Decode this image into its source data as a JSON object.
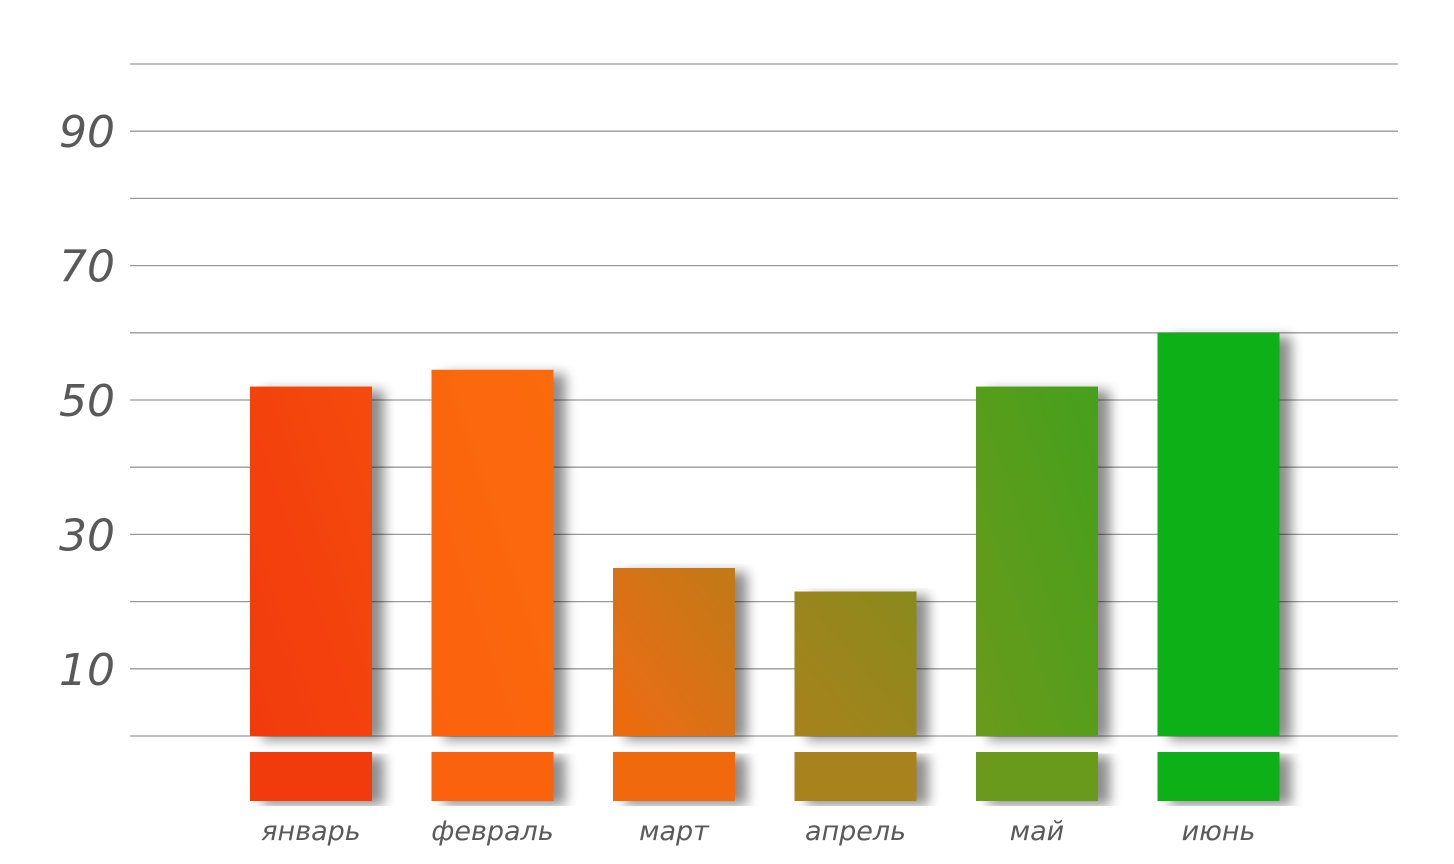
{
  "chart_data": {
    "type": "bar",
    "categories": [
      "январь",
      "февраль",
      "март",
      "апрель",
      "май",
      "июнь"
    ],
    "values": [
      52,
      54.5,
      25,
      21.5,
      52,
      60
    ],
    "title": "",
    "xlabel": "",
    "ylabel": "",
    "ylim": [
      0,
      100
    ],
    "y_ticks": [
      10,
      30,
      50,
      70,
      90
    ],
    "grid_step": 10,
    "grid": true,
    "legend": "none",
    "colors": {
      "bars_top": [
        "#f54a0c",
        "#fb6a10",
        "#c07a18",
        "#8a8a1a",
        "#45a01a",
        "#08b016"
      ],
      "bars_bottom": [
        "#f23a08",
        "#fb6210",
        "#f06a10",
        "#a8821a",
        "#6a9a1a",
        "#08b016"
      ],
      "grid": "#9a9a9a",
      "labels": "#595959"
    }
  }
}
